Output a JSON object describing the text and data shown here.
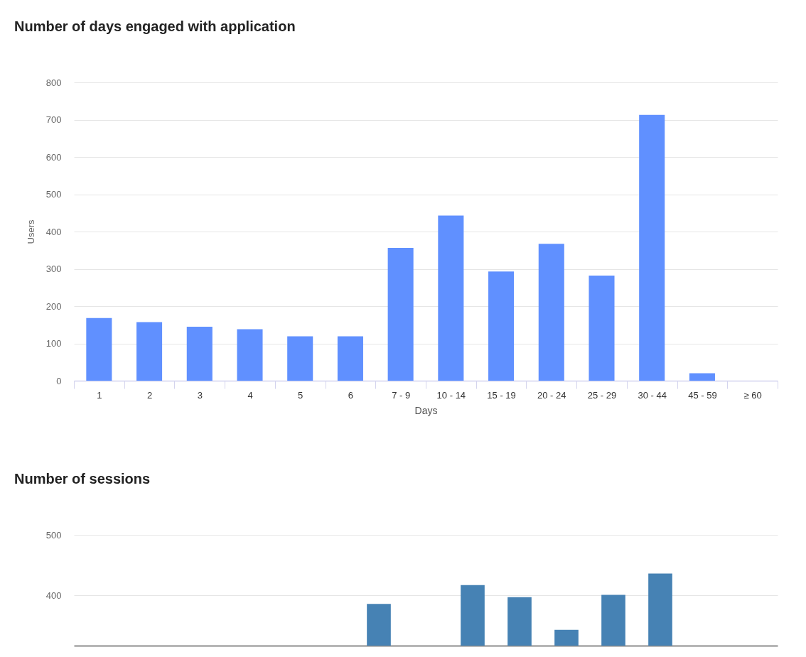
{
  "chart_data": [
    {
      "type": "bar",
      "title": "Number of days engaged with application",
      "xlabel": "Days",
      "ylabel": "Users",
      "categories": [
        "1",
        "2",
        "3",
        "4",
        "5",
        "6",
        "7 - 9",
        "10 - 14",
        "15 - 19",
        "20 - 24",
        "25 - 29",
        "30 - 44",
        "45 - 59",
        "≥ 60"
      ],
      "values": [
        168,
        157,
        145,
        138,
        119,
        119,
        356,
        443,
        293,
        367,
        282,
        713,
        20,
        0
      ],
      "color": "#6090ff",
      "ylim": [
        0,
        800
      ],
      "yticks": [
        0,
        100,
        200,
        300,
        400,
        500,
        600,
        700,
        800
      ],
      "grid": "y"
    },
    {
      "type": "bar",
      "title": "Number of sessions",
      "categories": [
        null,
        null,
        null,
        null,
        null,
        null,
        null,
        null,
        null,
        null,
        null,
        null,
        null,
        null,
        null
      ],
      "values": [
        null,
        null,
        null,
        null,
        null,
        null,
        386,
        null,
        417,
        397,
        343,
        401,
        436,
        null,
        null
      ],
      "color": "#4682b4",
      "ylim": [
        317,
        500
      ],
      "yticks": [
        400,
        500
      ],
      "grid": "y",
      "tick_labels": "y"
    }
  ]
}
